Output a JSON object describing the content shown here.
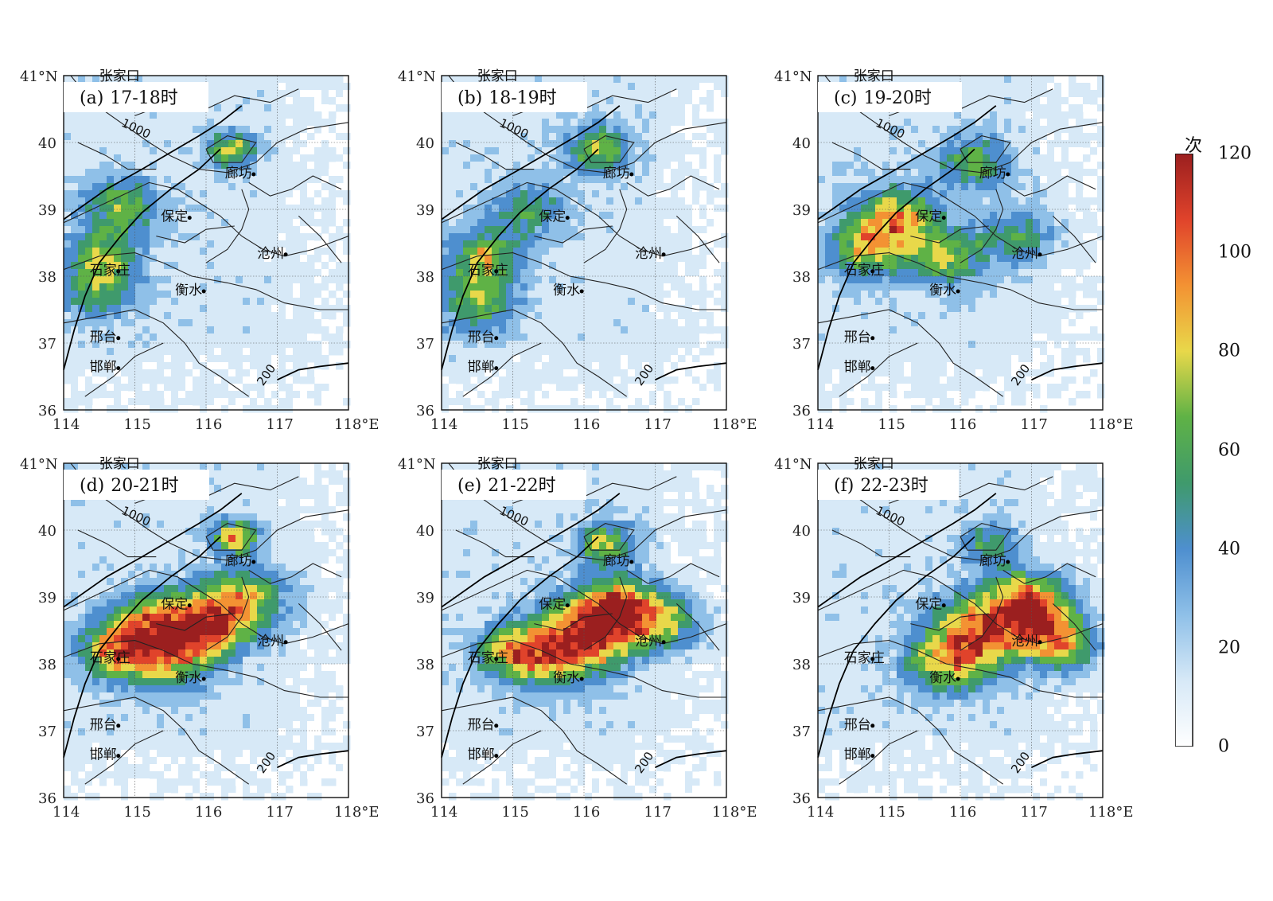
{
  "panels": [
    {
      "label": "(a)",
      "time": "17-18时",
      "hotspots": [
        [
          114.8,
          39.05,
          55,
          0.55
        ],
        [
          114.55,
          38.3,
          50,
          0.5
        ],
        [
          116.35,
          39.9,
          60,
          0.35
        ],
        [
          114.5,
          37.8,
          45,
          0.55
        ]
      ]
    },
    {
      "label": "(b)",
      "time": "18-19时",
      "hotspots": [
        [
          114.6,
          38.3,
          65,
          0.5
        ],
        [
          114.5,
          37.6,
          55,
          0.55
        ],
        [
          116.2,
          39.9,
          60,
          0.45
        ],
        [
          115.2,
          39.0,
          45,
          0.55
        ]
      ]
    },
    {
      "label": "(c)",
      "time": "19-20时",
      "hotspots": [
        [
          114.7,
          38.4,
          70,
          0.55
        ],
        [
          115.1,
          38.9,
          70,
          0.55
        ],
        [
          115.8,
          38.3,
          60,
          0.55
        ],
        [
          116.2,
          39.7,
          55,
          0.5
        ],
        [
          116.8,
          38.6,
          45,
          0.5
        ]
      ]
    },
    {
      "label": "(d)",
      "time": "20-21时",
      "hotspots": [
        [
          116.0,
          38.6,
          100,
          0.6
        ],
        [
          114.8,
          38.2,
          85,
          0.55
        ],
        [
          116.4,
          39.9,
          90,
          0.3
        ],
        [
          115.5,
          38.1,
          60,
          0.6
        ],
        [
          116.6,
          39.0,
          55,
          0.6
        ],
        [
          115.2,
          38.7,
          55,
          0.5
        ]
      ]
    },
    {
      "label": "(e)",
      "time": "21-22时",
      "hotspots": [
        [
          116.5,
          38.8,
          105,
          0.55
        ],
        [
          116.0,
          38.4,
          80,
          0.7
        ],
        [
          115.4,
          38.1,
          60,
          0.6
        ],
        [
          116.3,
          39.8,
          65,
          0.4
        ],
        [
          117.2,
          38.6,
          50,
          0.5
        ],
        [
          114.9,
          38.2,
          50,
          0.45
        ]
      ]
    },
    {
      "label": "(f)",
      "time": "22-23时",
      "hotspots": [
        [
          116.3,
          38.5,
          85,
          0.7
        ],
        [
          117.2,
          38.6,
          70,
          0.6
        ],
        [
          116.9,
          39.0,
          60,
          0.5
        ],
        [
          115.8,
          38.0,
          55,
          0.6
        ],
        [
          116.4,
          39.8,
          45,
          0.4
        ],
        [
          117.5,
          38.2,
          45,
          0.45
        ]
      ]
    }
  ],
  "axes": {
    "lon_ticks": [
      "114",
      "115",
      "116",
      "117",
      "118°E"
    ],
    "lat_ticks": [
      "41°N",
      "40",
      "39",
      "38",
      "37",
      "36"
    ],
    "lon_range": [
      114,
      118
    ],
    "lat_range": [
      36,
      41
    ]
  },
  "cities": [
    {
      "name": "廊坊",
      "lon": 116.4,
      "lat": 39.5
    },
    {
      "name": "保定",
      "lon": 115.5,
      "lat": 38.85
    },
    {
      "name": "沧州",
      "lon": 116.85,
      "lat": 38.3
    },
    {
      "name": "石家庄",
      "lon": 114.5,
      "lat": 38.05
    },
    {
      "name": "衡水",
      "lon": 115.7,
      "lat": 37.75
    },
    {
      "name": "邢台",
      "lon": 114.5,
      "lat": 37.05
    },
    {
      "name": "邯郸",
      "lon": 114.5,
      "lat": 36.6
    }
  ],
  "top_label": "张家口",
  "contours": {
    "high": "1000",
    "low": "200"
  },
  "colorbar": {
    "unit": "次",
    "ticks": [
      "120",
      "100",
      "80",
      "60",
      "40",
      "20",
      "0"
    ],
    "min": 0,
    "max": 120,
    "colors": [
      "#ffffff",
      "#d7e9f7",
      "#8fc0e8",
      "#4e8fcf",
      "#3f9a6c",
      "#5fb246",
      "#e8d84a",
      "#f39233",
      "#e0432b",
      "#9b1f1f"
    ]
  }
}
